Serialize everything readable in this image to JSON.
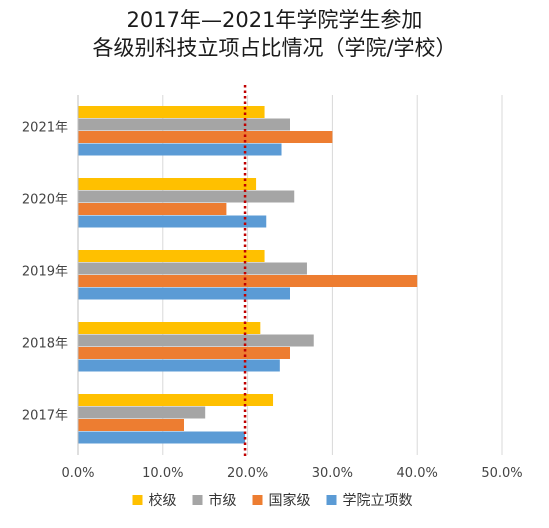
{
  "chart_data": {
    "type": "bar",
    "orientation": "horizontal",
    "title_line1": "2017年—2021年学院学生参加",
    "title_line2": "各级别科技立项占比情况（学院/学校）",
    "categories": [
      "2021年",
      "2020年",
      "2019年",
      "2018年",
      "2017年"
    ],
    "x_ticks": [
      "0.0%",
      "10.0%",
      "20.0%",
      "30.0%",
      "40.0%",
      "50.0%"
    ],
    "xlim": [
      0,
      50
    ],
    "grid": true,
    "legend_position": "bottom",
    "reference_line": {
      "value": 19.7,
      "style": "dotted",
      "color": "#c00000"
    },
    "series": [
      {
        "name": "校级",
        "color": "#FFC000",
        "values": [
          22.0,
          21.0,
          22.0,
          21.5,
          23.0
        ]
      },
      {
        "name": "市级",
        "color": "#A5A5A5",
        "values": [
          25.0,
          25.5,
          27.0,
          27.8,
          15.0
        ]
      },
      {
        "name": "国家级",
        "color": "#ED7D31",
        "values": [
          30.0,
          17.5,
          40.0,
          25.0,
          12.5
        ]
      },
      {
        "name": "学院立项数",
        "color": "#5B9BD5",
        "values": [
          24.0,
          22.2,
          25.0,
          23.8,
          19.7
        ]
      }
    ]
  }
}
